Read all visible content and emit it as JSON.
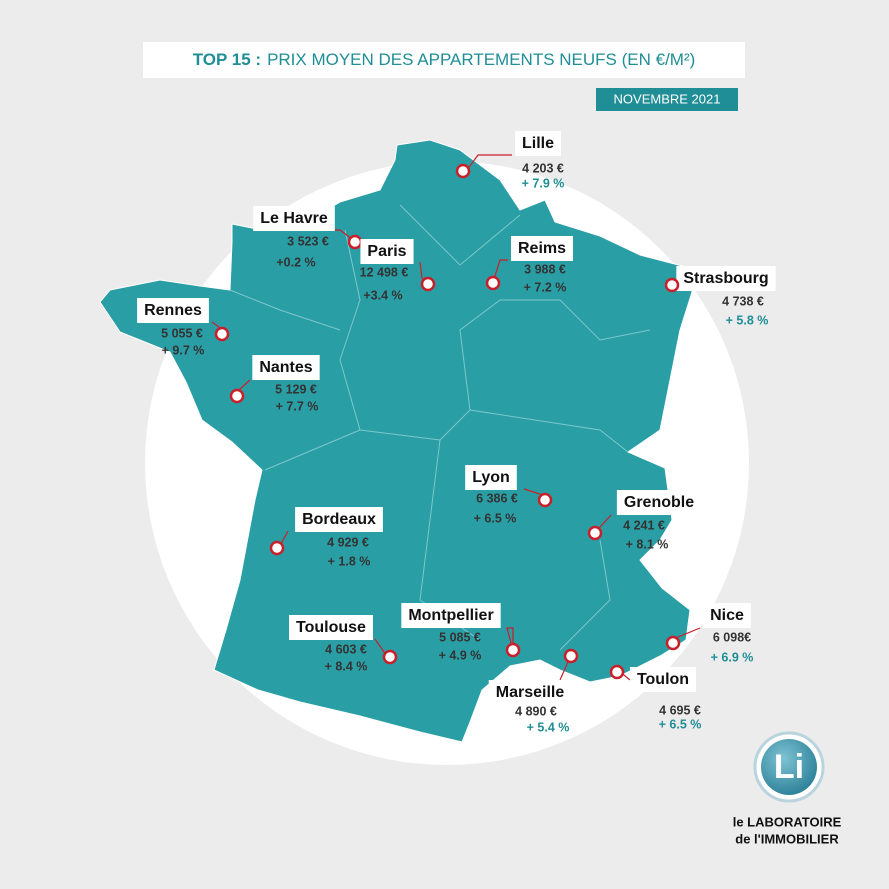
{
  "header": {
    "title_strong": "TOP 15 :",
    "title": "PRIX MOYEN DES APPARTEMENTS NEUFS (EN €/M²)",
    "date": "NOVEMBRE 2021"
  },
  "cities": [
    {
      "name": "Lille",
      "price": "4 203 €",
      "change": "+ 7.9 %"
    },
    {
      "name": "Le Havre",
      "price": "3 523 €",
      "change": "+0.2 %"
    },
    {
      "name": "Paris",
      "price": "12 498 €",
      "change": "+3.4 %"
    },
    {
      "name": "Reims",
      "price": "3 988 €",
      "change": "+ 7.2 %"
    },
    {
      "name": "Strasbourg",
      "price": "4 738 €",
      "change": "+ 5.8 %"
    },
    {
      "name": "Rennes",
      "price": "5 055 €",
      "change": "+ 9.7 %"
    },
    {
      "name": "Nantes",
      "price": "5 129 €",
      "change": "+ 7.7 %"
    },
    {
      "name": "Lyon",
      "price": "6 386 €",
      "change": "+ 6.5 %"
    },
    {
      "name": "Grenoble",
      "price": "4 241 €",
      "change": "+ 8.1 %"
    },
    {
      "name": "Bordeaux",
      "price": "4 929 €",
      "change": "+ 1.8 %"
    },
    {
      "name": "Toulouse",
      "price": "4 603 €",
      "change": "+ 8.4 %"
    },
    {
      "name": "Montpellier",
      "price": "5 085 €",
      "change": "+ 4.9 %"
    },
    {
      "name": "Marseille",
      "price": "4 890 €",
      "change": "+ 5.4 %"
    },
    {
      "name": "Nice",
      "price": "6 098€",
      "change": "+ 6.9 %"
    },
    {
      "name": "Toulon",
      "price": "4 695 €",
      "change": "+ 6.5 %"
    }
  ],
  "logo": {
    "mark": "Li",
    "line1": "le LABORATOIRE",
    "line2": "de l'IMMOBILIER"
  }
}
